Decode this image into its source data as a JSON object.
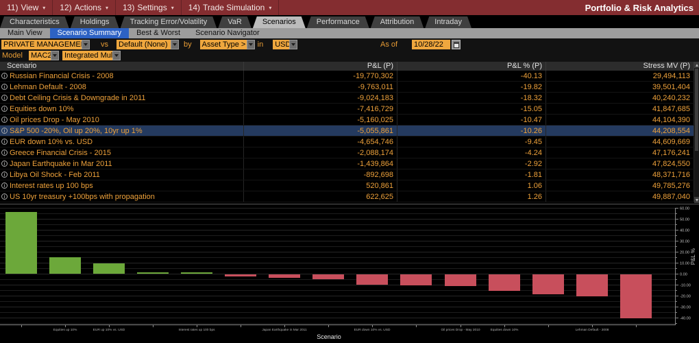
{
  "menu": {
    "items": [
      {
        "num": "11)",
        "label": "View"
      },
      {
        "num": "12)",
        "label": "Actions"
      },
      {
        "num": "13)",
        "label": "Settings"
      },
      {
        "num": "14)",
        "label": "Trade Simulation"
      }
    ],
    "app_title": "Portfolio & Risk Analytics"
  },
  "tabs": {
    "items": [
      "Characteristics",
      "Holdings",
      "Tracking Error/Volatility",
      "VaR",
      "Scenarios",
      "Performance",
      "Attribution",
      "Intraday"
    ],
    "active": "Scenarios"
  },
  "subtabs": {
    "items": [
      "Main View",
      "Scenario Summary",
      "Best & Worst",
      "Scenario Navigator"
    ],
    "active": "Scenario Summary"
  },
  "controls": {
    "portfolio": "PRIVATE MANAGEMENT (",
    "vs_label": "vs",
    "benchmark": "Default (None)",
    "by_label": "by",
    "group_by": "Asset Type >",
    "in_label": "in",
    "currency": "USD",
    "asof_label": "As of",
    "asof_date": "10/28/22",
    "model_label": "Model",
    "model": "MAC2",
    "model_type": "Integrated Mul"
  },
  "table": {
    "columns": [
      "Scenario",
      "P&L (P)",
      "P&L % (P)",
      "Stress MV (P)"
    ],
    "highlighted_scenario": "S&P 500 -20%, Oil up 20%, 10yr up 1%",
    "rows": [
      {
        "scenario": "Russian Financial Crisis - 2008",
        "pnl": "-19,770,302",
        "pnl_pct": "-40.13",
        "stress_mv": "29,494,113"
      },
      {
        "scenario": "Lehman Default - 2008",
        "pnl": "-9,763,011",
        "pnl_pct": "-19.82",
        "stress_mv": "39,501,404"
      },
      {
        "scenario": "Debt Ceiling Crisis & Downgrade in 2011",
        "pnl": "-9,024,183",
        "pnl_pct": "-18.32",
        "stress_mv": "40,240,232"
      },
      {
        "scenario": "Equities down 10%",
        "pnl": "-7,416,729",
        "pnl_pct": "-15.05",
        "stress_mv": "41,847,685"
      },
      {
        "scenario": "Oil prices Drop - May 2010",
        "pnl": "-5,160,025",
        "pnl_pct": "-10.47",
        "stress_mv": "44,104,390"
      },
      {
        "scenario": "S&P 500 -20%, Oil up 20%, 10yr up 1%",
        "pnl": "-5,055,861",
        "pnl_pct": "-10.26",
        "stress_mv": "44,208,554"
      },
      {
        "scenario": "EUR down 10% vs. USD",
        "pnl": "-4,654,746",
        "pnl_pct": "-9.45",
        "stress_mv": "44,609,669"
      },
      {
        "scenario": "Greece Financial Crisis - 2015",
        "pnl": "-2,088,174",
        "pnl_pct": "-4.24",
        "stress_mv": "47,176,241"
      },
      {
        "scenario": "Japan Earthquake in Mar 2011",
        "pnl": "-1,439,864",
        "pnl_pct": "-2.92",
        "stress_mv": "47,824,550"
      },
      {
        "scenario": "Libya Oil Shock - Feb 2011",
        "pnl": "-892,698",
        "pnl_pct": "-1.81",
        "stress_mv": "48,371,716"
      },
      {
        "scenario": "Interest rates up 100 bps",
        "pnl": "520,861",
        "pnl_pct": "1.06",
        "stress_mv": "49,785,276"
      },
      {
        "scenario": "US 10yr treasury +100bps with propagation",
        "pnl": "622,625",
        "pnl_pct": "1.26",
        "stress_mv": "49,887,040"
      }
    ]
  },
  "chart_data": {
    "type": "bar",
    "title": "",
    "xlabel": "Scenario",
    "ylabel": "P&L %",
    "ylim": [
      -46,
      60
    ],
    "ytick_step": 10,
    "ytick_labels": [
      "60.00",
      "50.00",
      "40.00",
      "30.00",
      "20.00",
      "10.00",
      "0.00",
      "-10.00",
      "-20.00",
      "-30.00",
      "-40.00"
    ],
    "grid": true,
    "legend": false,
    "colors": {
      "positive": "#6ca83a",
      "negative": "#c84f5c"
    },
    "bars": [
      {
        "label": "",
        "value": 56.5
      },
      {
        "label": "Equities up 10%",
        "value": 15.0
      },
      {
        "label": "EUR up 10% vs. USD",
        "value": 9.45
      },
      {
        "label": "",
        "value": 1.26
      },
      {
        "label": "Interest rates up 100 bps",
        "value": 1.06
      },
      {
        "label": "",
        "value": -1.81
      },
      {
        "label": "Japan Earthquake in Mar 2011",
        "value": -2.92
      },
      {
        "label": "",
        "value": -4.24
      },
      {
        "label": "EUR down 10% vs. USD",
        "value": -9.45
      },
      {
        "label": "",
        "value": -10.26
      },
      {
        "label": "Oil prices Drop - May 2010",
        "value": -10.47
      },
      {
        "label": "Equities down 10%",
        "value": -15.05
      },
      {
        "label": "",
        "value": -18.32
      },
      {
        "label": "Lehman Default - 2008",
        "value": -19.82
      },
      {
        "label": "",
        "value": -40.13
      }
    ]
  },
  "colors": {
    "menubar_bg": "#842d30",
    "active_subtab_bg": "#2d62c4",
    "field_bg": "#efa73e",
    "table_text": "#efa23b",
    "highlight_row_bg": "#243a5f",
    "bar_positive": "#6ca83a",
    "bar_negative": "#c84f5c"
  }
}
